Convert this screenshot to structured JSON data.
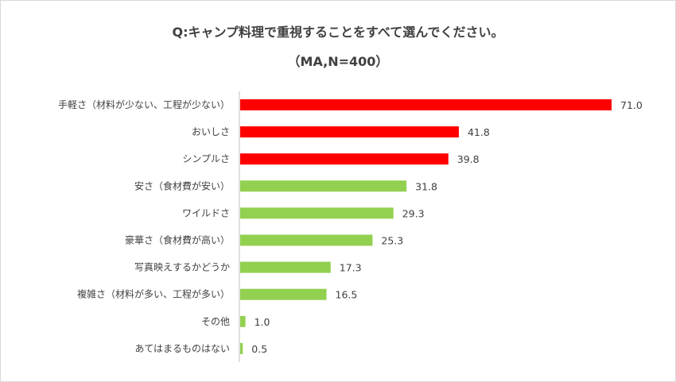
{
  "chart_data": {
    "type": "bar",
    "orientation": "horizontal",
    "title": "Q:キャンプ料理で重視することをすべて選んでください。",
    "subtitle": "（MA,N=400）",
    "categories": [
      "手軽さ（材料が少ない、工程が少ない）",
      "おいしさ",
      "シンプルさ",
      "安さ（食材費が安い）",
      "ワイルドさ",
      "豪華さ（食材費が高い）",
      "写真映えするかどうか",
      "複雑さ（材料が多い、工程が多い）",
      "その他",
      "あてはまるものはない"
    ],
    "values": [
      71.0,
      41.8,
      39.8,
      31.8,
      29.3,
      25.3,
      17.3,
      16.5,
      1.0,
      0.5
    ],
    "value_labels": [
      "71.0",
      "41.8",
      "39.8",
      "31.8",
      "29.3",
      "25.3",
      "17.3",
      "16.5",
      "1.0",
      "0.5"
    ],
    "bar_colors": [
      "#ff0000",
      "#ff0000",
      "#ff0000",
      "#92d050",
      "#92d050",
      "#92d050",
      "#92d050",
      "#92d050",
      "#92d050",
      "#92d050"
    ],
    "xlim": [
      0,
      71.0
    ],
    "grid": false,
    "legend": false
  }
}
